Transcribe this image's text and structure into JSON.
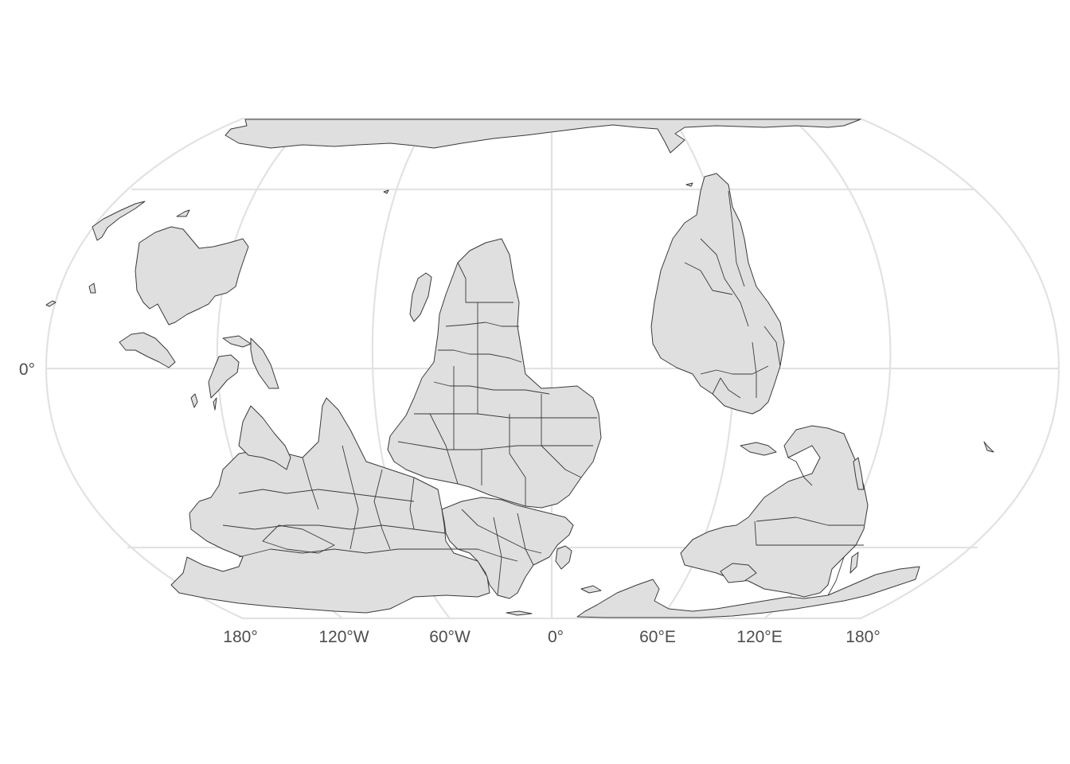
{
  "map": {
    "projection": "Robinson (south-up, rotated)",
    "background": "#ffffff",
    "land_fill": "#dfdfdf",
    "border_color": "#3a3a3a",
    "graticule_color": "#e2e2e2",
    "x_axis_labels": [
      "180°",
      "120°W",
      "60°W",
      "0°",
      "60°E",
      "120°E",
      "180°"
    ],
    "y_axis_labels": [
      "0°"
    ]
  }
}
